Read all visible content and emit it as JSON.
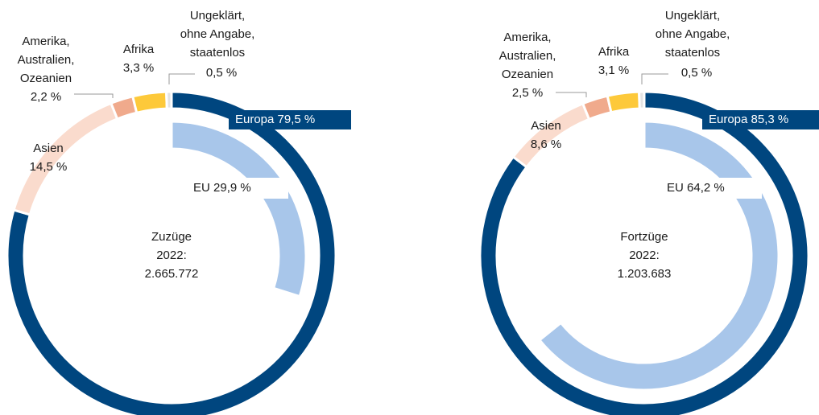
{
  "chart_data": [
    {
      "type": "donut",
      "title": "Zuzüge\n2022:",
      "total": {
        "value": 2665772,
        "label": "2.665.772"
      },
      "categories": [
        "Europa",
        "Asien",
        "Amerika,\nAustralien,\nOzeanien",
        "Afrika",
        "Ungeklärt,\nohne Angabe,\nstaatenlos"
      ],
      "values": [
        79.5,
        14.5,
        2.2,
        3.3,
        0.5
      ],
      "value_labels": [
        "79,5 %",
        "14,5 %",
        "2,2 %",
        "3,3 %",
        "0,5 %"
      ],
      "colors": [
        "#00467f",
        "#fadbcd",
        "#f0aa8c",
        "#fdc93a",
        "#e3e3e3"
      ],
      "inner": {
        "name": "EU",
        "value": 29.9,
        "value_label": "29,9 %",
        "color": "#a8c6ea"
      }
    },
    {
      "type": "donut",
      "title": "Fortzüge\n2022:",
      "total": {
        "value": 1203683,
        "label": "1.203.683"
      },
      "categories": [
        "Europa",
        "Asien",
        "Amerika,\nAustralien,\nOzeanien",
        "Afrika",
        "Ungeklärt,\nohne Angabe,\nstaatenlos"
      ],
      "values": [
        85.3,
        8.6,
        2.5,
        3.1,
        0.5
      ],
      "value_labels": [
        "85,3 %",
        "8,6 %",
        "2,5 %",
        "3,1 %",
        "0,5 %"
      ],
      "colors": [
        "#00467f",
        "#fadbcd",
        "#f0aa8c",
        "#fdc93a",
        "#e3e3e3"
      ],
      "inner": {
        "name": "EU",
        "value": 64.2,
        "value_label": "64,2 %",
        "color": "#a8c6ea"
      }
    }
  ]
}
